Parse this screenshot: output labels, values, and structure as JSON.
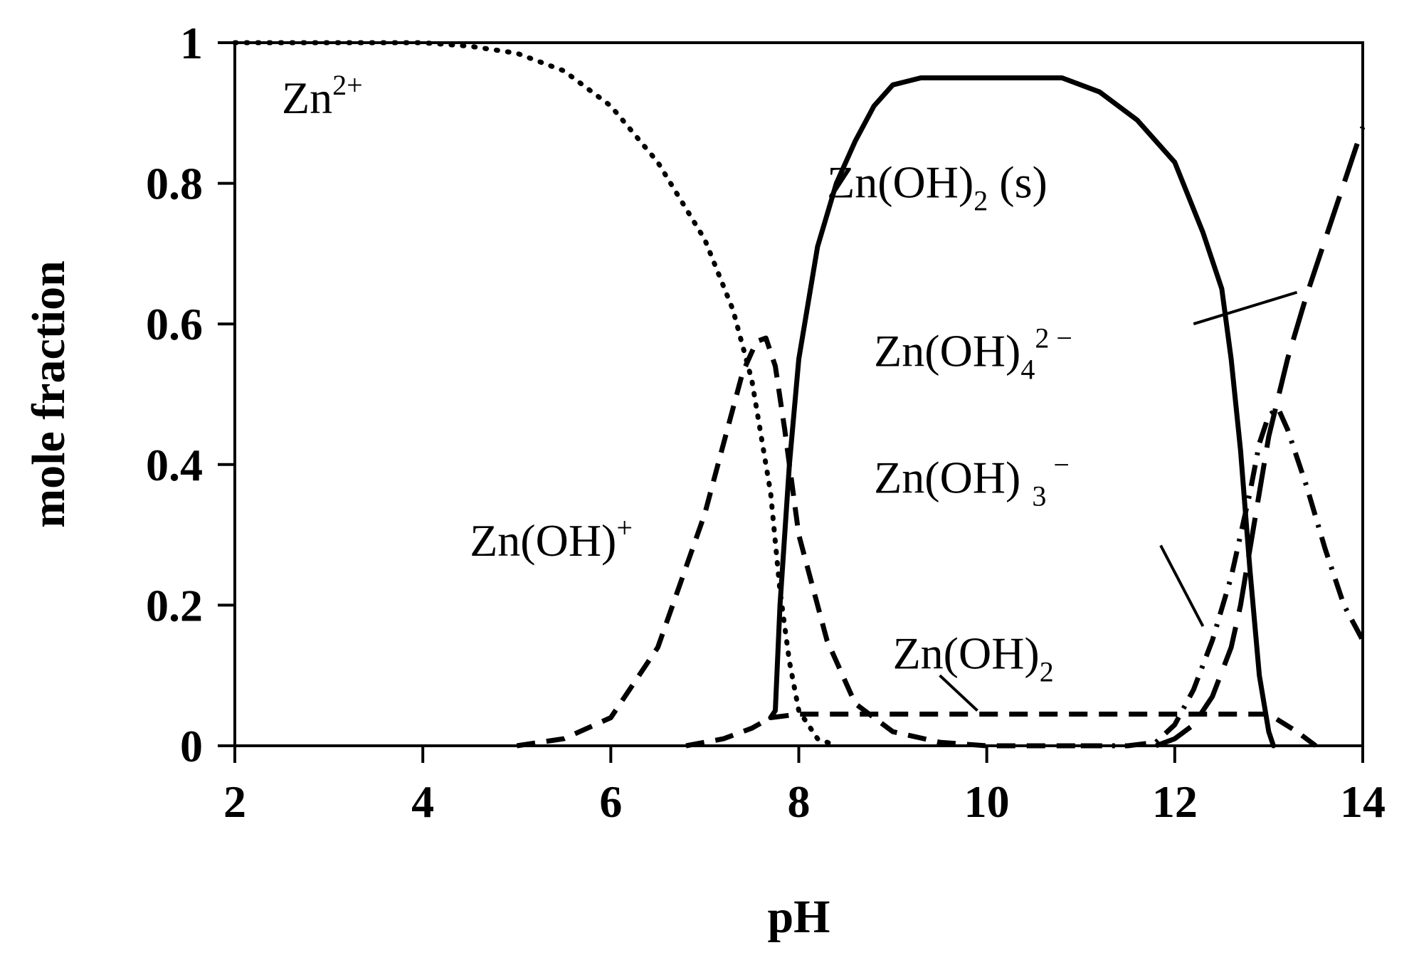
{
  "chart_data": {
    "type": "line",
    "title": "",
    "xlabel": "pH",
    "ylabel": "mole fraction",
    "xlim": [
      2,
      14
    ],
    "ylim": [
      0,
      1
    ],
    "xticks": [
      "2",
      "4",
      "6",
      "8",
      "10",
      "12",
      "14"
    ],
    "yticks": [
      "0",
      "0.2",
      "0.4",
      "0.6",
      "0.8",
      "1"
    ],
    "grid": false,
    "legend": "none (inline annotations)",
    "series": [
      {
        "name": "Zn2+",
        "style": "dotted",
        "x": [
          2,
          3,
          4,
          4.5,
          5,
          5.5,
          6,
          6.5,
          7,
          7.3,
          7.5,
          7.7,
          7.8,
          7.9,
          8.0,
          8.2,
          8.4
        ],
        "y": [
          1.0,
          1.0,
          1.0,
          0.995,
          0.985,
          0.96,
          0.91,
          0.83,
          0.72,
          0.62,
          0.52,
          0.36,
          0.22,
          0.12,
          0.05,
          0.01,
          0.0
        ]
      },
      {
        "name": "Zn(OH)+",
        "style": "dashed",
        "x": [
          5.0,
          5.5,
          6.0,
          6.5,
          7.0,
          7.2,
          7.4,
          7.55,
          7.65,
          7.75,
          7.85,
          8.0,
          8.3,
          8.6,
          9.0,
          9.5,
          10.0,
          11.0
        ],
        "y": [
          0.0,
          0.01,
          0.04,
          0.14,
          0.33,
          0.43,
          0.53,
          0.575,
          0.58,
          0.54,
          0.45,
          0.3,
          0.15,
          0.06,
          0.02,
          0.005,
          0.0,
          0.0
        ]
      },
      {
        "name": "Zn(OH)2 (s)",
        "style": "solid",
        "x": [
          7.7,
          7.75,
          7.8,
          7.9,
          8.0,
          8.2,
          8.4,
          8.6,
          8.8,
          9.0,
          9.3,
          9.6,
          10.0,
          10.5,
          10.8,
          11.2,
          11.6,
          12.0,
          12.3,
          12.5,
          12.6,
          12.7,
          12.8,
          12.9,
          13.0,
          13.05
        ],
        "y": [
          0.04,
          0.05,
          0.2,
          0.4,
          0.55,
          0.71,
          0.8,
          0.86,
          0.91,
          0.94,
          0.95,
          0.95,
          0.95,
          0.95,
          0.95,
          0.93,
          0.89,
          0.83,
          0.73,
          0.65,
          0.55,
          0.42,
          0.25,
          0.1,
          0.02,
          0.0
        ]
      },
      {
        "name": "Zn(OH)2",
        "style": "dashed",
        "x": [
          6.8,
          7.2,
          7.5,
          7.7,
          8.0,
          9.0,
          10.0,
          11.0,
          11.7,
          12.0,
          12.5,
          13.0,
          13.3,
          13.5
        ],
        "y": [
          0.0,
          0.01,
          0.025,
          0.04,
          0.045,
          0.045,
          0.045,
          0.045,
          0.045,
          0.045,
          0.045,
          0.045,
          0.02,
          0.0
        ]
      },
      {
        "name": "Zn(OH)3-",
        "style": "dash-dot",
        "x": [
          11.0,
          11.5,
          11.8,
          12.0,
          12.2,
          12.4,
          12.6,
          12.8,
          12.9,
          13.0,
          13.1,
          13.2,
          13.4,
          13.6,
          13.8,
          14.0
        ],
        "y": [
          0.0,
          0.0,
          0.005,
          0.03,
          0.08,
          0.15,
          0.24,
          0.36,
          0.43,
          0.47,
          0.48,
          0.45,
          0.37,
          0.28,
          0.2,
          0.15
        ]
      },
      {
        "name": "Zn(OH)4 2-",
        "style": "long-dashed",
        "x": [
          11.8,
          12.0,
          12.2,
          12.4,
          12.6,
          12.7,
          12.8,
          12.9,
          13.0,
          13.2,
          13.4,
          13.6,
          13.8,
          14.0
        ],
        "y": [
          0.0,
          0.01,
          0.03,
          0.07,
          0.14,
          0.2,
          0.28,
          0.36,
          0.44,
          0.55,
          0.64,
          0.72,
          0.8,
          0.88
        ]
      }
    ],
    "annotations": [
      {
        "text": "Zn",
        "sup": "2+",
        "x": 2.5,
        "y": 0.9
      },
      {
        "text": "Zn(OH)",
        "sup": "+",
        "x": 4.5,
        "y": 0.27
      },
      {
        "text": "Zn(OH)",
        "sub": "2",
        "after": " (s)",
        "x": 8.3,
        "y": 0.78
      },
      {
        "text": "Zn(OH)",
        "sub": "4",
        "sup": "2 −",
        "x": 8.8,
        "y": 0.54
      },
      {
        "text": "Zn(OH) ",
        "sub": "3",
        "sup": " −",
        "x": 8.8,
        "y": 0.36
      },
      {
        "text": "Zn(OH)",
        "sub": "2",
        "x": 9.0,
        "y": 0.11
      }
    ],
    "leader_lines": [
      {
        "label": "Zn(OH)4 2-",
        "from": [
          12.2,
          0.6
        ],
        "to": [
          13.3,
          0.645
        ]
      },
      {
        "label": "Zn(OH)3-",
        "from": [
          11.85,
          0.285
        ],
        "to": [
          12.3,
          0.17
        ]
      },
      {
        "label": "Zn(OH)2",
        "from": [
          9.5,
          0.1
        ],
        "to": [
          9.9,
          0.05
        ]
      }
    ]
  }
}
